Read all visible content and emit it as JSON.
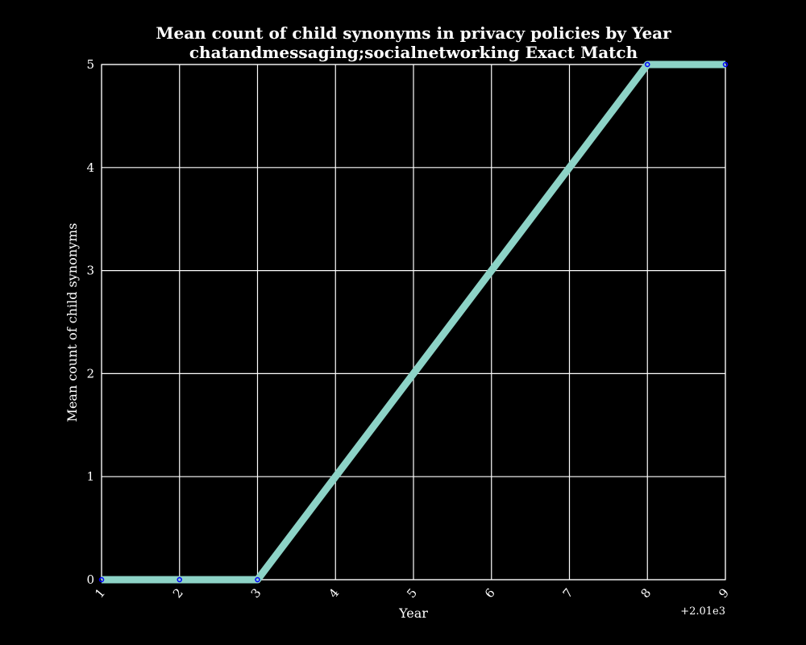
{
  "chart_data": {
    "type": "line",
    "title": "Mean count of child synonyms in privacy policies by Year",
    "subtitle": "chatandmessaging;socialnetworking Exact Match",
    "xlabel": "Year",
    "ylabel": "Mean count of child synonyms",
    "x_tick_labels": [
      "1",
      "2",
      "3",
      "4",
      "5",
      "6",
      "7",
      "8",
      "9"
    ],
    "y_tick_labels": [
      "0",
      "1",
      "2",
      "3",
      "4",
      "5"
    ],
    "x_offset_label": "+2.01e3",
    "xlim": [
      2011,
      2019
    ],
    "ylim": [
      0,
      5
    ],
    "grid": true,
    "series": [
      {
        "x": [
          2011,
          2012,
          2013,
          2018,
          2019
        ],
        "values": [
          0,
          0,
          0,
          5,
          5
        ],
        "color": "#8dd3c7"
      }
    ],
    "marker_color": "#0000ff",
    "background": "#000000",
    "foreground": "#ffffff"
  }
}
